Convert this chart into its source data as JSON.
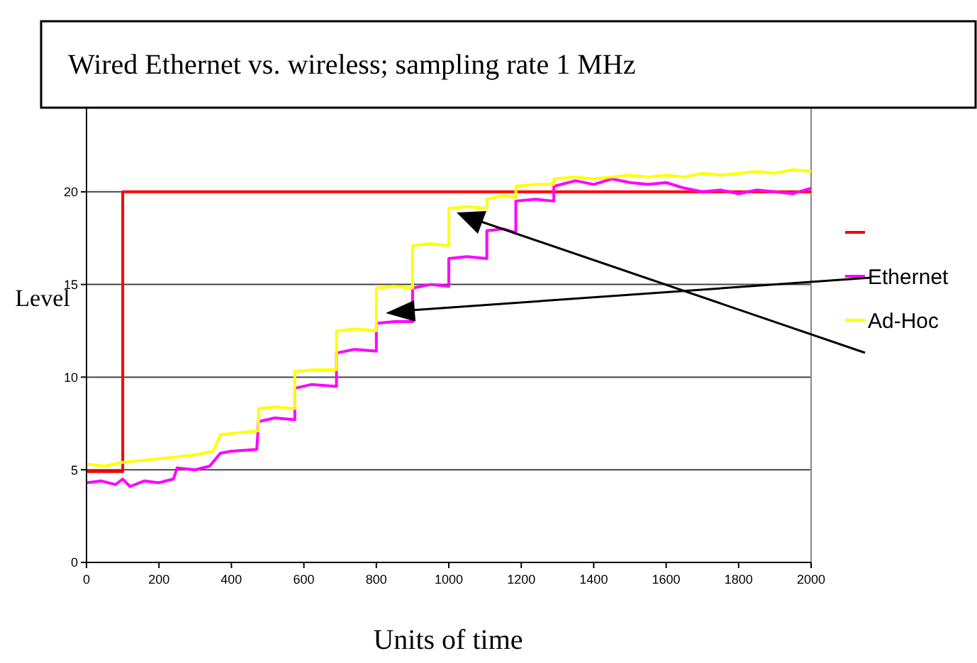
{
  "chart_data": {
    "type": "line",
    "title": "Wired Ethernet vs. wireless; sampling rate 1 MHz",
    "xlabel": "Units of time",
    "ylabel": "Level",
    "xlim": [
      0,
      2000
    ],
    "ylim": [
      0,
      25
    ],
    "xticks": [
      0,
      200,
      400,
      600,
      800,
      1000,
      1200,
      1400,
      1600,
      1800,
      2000
    ],
    "yticks": [
      0,
      5,
      10,
      15,
      20
    ],
    "grid": "y",
    "legend": "right",
    "marker": "none",
    "line_style": "solid",
    "series": [
      {
        "color": "#ff0000",
        "x": [
          0,
          100,
          100,
          2000
        ],
        "values": [
          4.9,
          4.9,
          20,
          20
        ]
      },
      {
        "name": "Ethernet",
        "color": "#ff00ff",
        "x": [
          0,
          40,
          80,
          100,
          120,
          160,
          200,
          240,
          250,
          300,
          340,
          370,
          400,
          470,
          475,
          520,
          575,
          575,
          620,
          690,
          690,
          740,
          800,
          800,
          850,
          900,
          900,
          950,
          1000,
          1000,
          1050,
          1105,
          1105,
          1150,
          1185,
          1185,
          1240,
          1290,
          1290,
          1350,
          1400,
          1450,
          1500,
          1550,
          1600,
          1650,
          1700,
          1750,
          1800,
          1850,
          1900,
          1950,
          2000
        ],
        "values": [
          4.3,
          4.4,
          4.2,
          4.5,
          4.1,
          4.4,
          4.3,
          4.5,
          5.1,
          5.0,
          5.2,
          5.9,
          6.0,
          6.1,
          7.6,
          7.8,
          7.7,
          9.4,
          9.6,
          9.5,
          11.3,
          11.5,
          11.4,
          12.9,
          13.0,
          13.0,
          14.8,
          15.0,
          14.9,
          16.4,
          16.5,
          16.4,
          17.9,
          18.0,
          17.8,
          19.5,
          19.6,
          19.5,
          20.3,
          20.6,
          20.4,
          20.7,
          20.5,
          20.4,
          20.5,
          20.2,
          20.0,
          20.1,
          19.9,
          20.1,
          20.0,
          19.9,
          20.2
        ]
      },
      {
        "name": "Ad-Hoc",
        "color": "#ffff00",
        "x": [
          0,
          50,
          100,
          150,
          200,
          250,
          300,
          350,
          370,
          420,
          475,
          475,
          520,
          575,
          575,
          630,
          690,
          690,
          740,
          800,
          800,
          850,
          900,
          900,
          950,
          1000,
          1000,
          1050,
          1105,
          1105,
          1150,
          1185,
          1185,
          1240,
          1290,
          1290,
          1350,
          1400,
          1450,
          1500,
          1550,
          1600,
          1650,
          1700,
          1750,
          1800,
          1850,
          1900,
          1950,
          2000
        ],
        "values": [
          5.3,
          5.2,
          5.4,
          5.5,
          5.6,
          5.7,
          5.8,
          6.0,
          6.9,
          7.0,
          7.1,
          8.3,
          8.4,
          8.3,
          10.3,
          10.4,
          10.4,
          12.5,
          12.6,
          12.5,
          14.8,
          14.9,
          14.8,
          17.1,
          17.2,
          17.1,
          19.1,
          19.2,
          19.1,
          19.6,
          19.8,
          19.7,
          20.3,
          20.4,
          20.4,
          20.7,
          20.8,
          20.7,
          20.8,
          20.9,
          20.8,
          20.9,
          20.8,
          21.0,
          20.9,
          21.0,
          21.1,
          21.0,
          21.2,
          21.1
        ]
      }
    ]
  }
}
